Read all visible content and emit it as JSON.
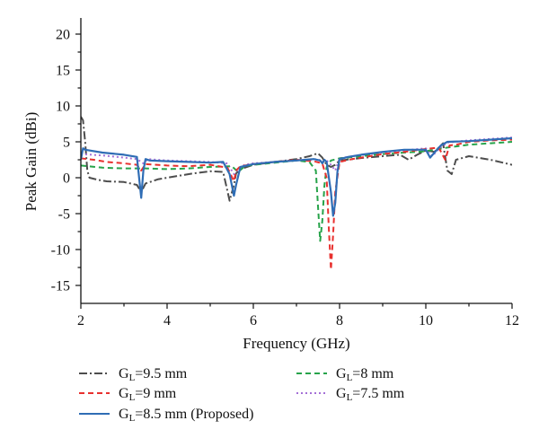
{
  "chart_data": {
    "type": "line",
    "title": "",
    "xlabel": "Frequency (GHz)",
    "ylabel": "Peak Gain (dBi)",
    "xlim": [
      2,
      12
    ],
    "ylim": [
      -17.5,
      22
    ],
    "x_ticks": [
      2,
      4,
      6,
      8,
      10,
      12
    ],
    "y_ticks": [
      -15,
      -10,
      -5,
      0,
      5,
      10,
      15,
      20
    ],
    "x_tick_labels": [
      "2",
      "4",
      "6",
      "8",
      "10",
      "12"
    ],
    "y_tick_labels": [
      "-15",
      "-10",
      "-5",
      "0",
      "5",
      "10",
      "15",
      "20"
    ],
    "grid": false,
    "legend_position": "bottom",
    "series": [
      {
        "name": "9.5 mm",
        "legend_prefix": "G",
        "legend_sub": "L",
        "legend_suffix": "=9.5 mm",
        "color": "#4d4d4d",
        "dash": "9 3 2 3",
        "x": [
          2.0,
          2.05,
          2.1,
          2.15,
          2.2,
          2.4,
          2.6,
          3.0,
          3.3,
          3.4,
          3.5,
          3.8,
          4.2,
          4.6,
          5.0,
          5.3,
          5.45,
          5.55,
          5.6,
          5.7,
          6.0,
          6.5,
          7.0,
          7.3,
          7.5,
          7.6,
          7.7,
          7.8,
          7.9,
          8.0,
          8.3,
          8.6,
          9.0,
          9.4,
          9.6,
          9.8,
          10.0,
          10.2,
          10.4,
          10.5,
          10.6,
          10.7,
          11.0,
          11.5,
          12.0
        ],
        "y": [
          8.5,
          8.0,
          5.0,
          1.0,
          0.0,
          -0.3,
          -0.5,
          -0.6,
          -1.0,
          -2.0,
          -0.8,
          -0.2,
          0.2,
          0.6,
          0.9,
          0.8,
          -3.2,
          -1.0,
          0.6,
          1.2,
          1.8,
          2.2,
          2.6,
          3.0,
          3.4,
          2.8,
          1.8,
          1.5,
          1.8,
          2.4,
          2.6,
          2.8,
          3.0,
          3.2,
          2.5,
          3.2,
          3.8,
          3.6,
          4.8,
          1.0,
          0.5,
          2.5,
          3.0,
          2.5,
          1.8
        ]
      },
      {
        "name": "9 mm",
        "legend_prefix": "G",
        "legend_sub": "L",
        "legend_suffix": "=9 mm",
        "color": "#e8302e",
        "dash": "6 4",
        "x": [
          2.0,
          2.3,
          2.6,
          3.0,
          3.3,
          3.4,
          3.5,
          4.0,
          4.5,
          5.0,
          5.4,
          5.55,
          5.6,
          5.7,
          6.0,
          6.5,
          7.0,
          7.4,
          7.6,
          7.7,
          7.75,
          7.8,
          7.85,
          7.9,
          8.0,
          8.3,
          8.7,
          9.0,
          9.5,
          10.0,
          10.3,
          10.45,
          10.55,
          10.7,
          11.0,
          11.5,
          12.0
        ],
        "y": [
          2.7,
          2.5,
          2.2,
          2.0,
          1.8,
          1.0,
          1.9,
          1.7,
          1.6,
          1.8,
          1.4,
          -0.5,
          1.0,
          1.6,
          1.9,
          2.2,
          2.5,
          2.3,
          2.0,
          0.0,
          -7.0,
          -12.8,
          -8.0,
          -2.0,
          2.2,
          2.6,
          3.0,
          3.3,
          3.6,
          4.0,
          4.2,
          2.5,
          4.5,
          4.6,
          5.0,
          5.2,
          5.3
        ]
      },
      {
        "name": "8.5 mm (Proposed)",
        "legend_prefix": "G",
        "legend_sub": "L",
        "legend_suffix": "=8.5 mm (Proposed)",
        "color": "#2f6db5",
        "dash": "",
        "x": [
          2.0,
          2.05,
          2.1,
          2.5,
          3.0,
          3.3,
          3.4,
          3.45,
          3.5,
          3.6,
          4.0,
          4.5,
          5.0,
          5.3,
          5.45,
          5.55,
          5.6,
          5.7,
          6.0,
          6.5,
          7.0,
          7.2,
          7.4,
          7.55,
          7.6,
          7.65,
          7.7,
          7.8,
          7.85,
          7.9,
          7.95,
          8.0,
          8.2,
          8.5,
          9.0,
          9.5,
          10.0,
          10.1,
          10.2,
          10.35,
          10.5,
          11.0,
          11.5,
          12.0
        ],
        "y": [
          2.5,
          4.1,
          3.9,
          3.5,
          3.2,
          2.9,
          -2.8,
          1.0,
          2.6,
          2.4,
          2.3,
          2.2,
          2.1,
          2.2,
          0.5,
          -2.5,
          -1.0,
          1.5,
          1.9,
          2.2,
          2.4,
          2.5,
          2.6,
          2.4,
          2.0,
          2.5,
          2.2,
          -2.0,
          -5.3,
          -3.5,
          0.8,
          2.6,
          2.9,
          3.2,
          3.6,
          3.9,
          3.9,
          2.8,
          3.5,
          4.5,
          5.0,
          5.1,
          5.3,
          5.5
        ]
      },
      {
        "name": "8 mm",
        "legend_prefix": "G",
        "legend_sub": "L",
        "legend_suffix": "=8 mm",
        "color": "#27a34a",
        "dash": "6 4",
        "x": [
          2.0,
          2.5,
          3.0,
          3.5,
          4.0,
          4.5,
          5.0,
          5.5,
          5.65,
          5.8,
          6.0,
          6.5,
          7.0,
          7.3,
          7.45,
          7.5,
          7.55,
          7.6,
          7.65,
          7.7,
          7.8,
          8.0,
          8.5,
          9.0,
          9.5,
          9.8,
          10.0,
          10.5,
          11.0,
          11.5,
          12.0
        ],
        "y": [
          1.7,
          1.4,
          1.3,
          1.3,
          1.2,
          1.3,
          1.5,
          1.6,
          0.8,
          1.6,
          1.8,
          2.1,
          2.4,
          2.2,
          1.0,
          -4.0,
          -8.8,
          -6.0,
          -1.0,
          1.5,
          2.4,
          2.7,
          3.0,
          3.3,
          3.5,
          3.6,
          3.7,
          4.2,
          4.6,
          4.8,
          5.0
        ]
      },
      {
        "name": "7.5 mm",
        "legend_prefix": "G",
        "legend_sub": "L",
        "legend_suffix": "=7.5 mm",
        "color": "#a46fd6",
        "dash": "2 3",
        "x": [
          2.0,
          2.5,
          3.0,
          3.3,
          3.45,
          3.55,
          4.0,
          4.5,
          5.0,
          5.4,
          5.55,
          5.65,
          5.8,
          6.0,
          6.5,
          7.0,
          7.3,
          7.5,
          7.6,
          7.7,
          7.8,
          7.9,
          8.0,
          8.3,
          8.7,
          9.0,
          9.5,
          10.0,
          10.15,
          10.3,
          10.5,
          11.0,
          11.5,
          12.0
        ],
        "y": [
          3.3,
          3.1,
          2.8,
          2.6,
          2.0,
          2.6,
          2.4,
          2.3,
          2.2,
          2.0,
          0.5,
          1.2,
          1.8,
          2.0,
          2.2,
          2.4,
          2.5,
          2.6,
          2.2,
          2.4,
          1.8,
          1.0,
          2.7,
          3.0,
          3.3,
          3.5,
          3.8,
          4.1,
          3.0,
          4.0,
          4.9,
          5.2,
          5.4,
          5.6
        ]
      }
    ]
  }
}
